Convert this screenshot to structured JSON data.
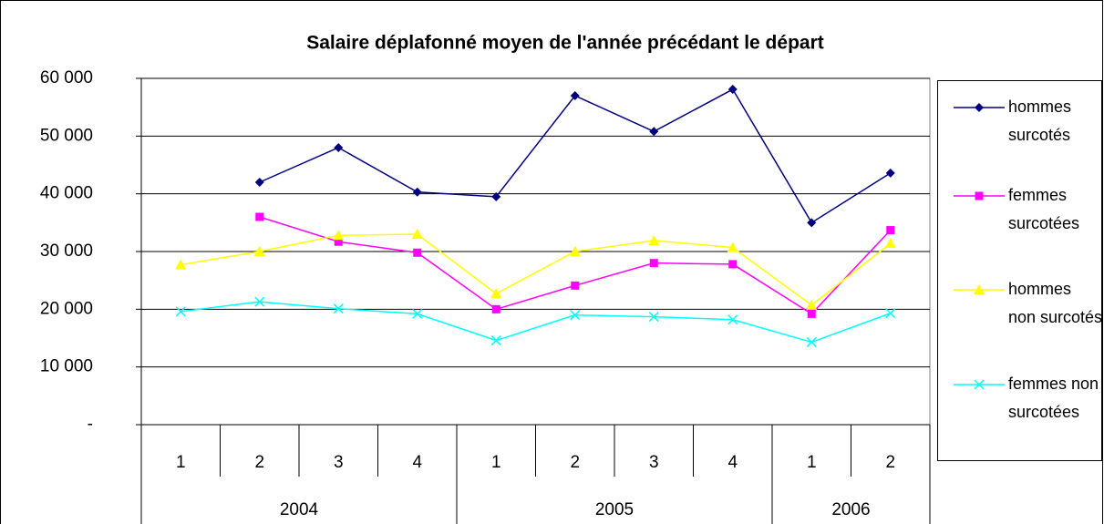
{
  "chart_data": {
    "type": "line",
    "title": "Salaire déplafonné moyen de l'année précédant le départ",
    "categories": [
      "1",
      "2",
      "3",
      "4",
      "1",
      "2",
      "3",
      "4",
      "1",
      "2"
    ],
    "category_groups": [
      "2004",
      "2004",
      "2004",
      "2004",
      "2005",
      "2005",
      "2005",
      "2005",
      "2006",
      "2006"
    ],
    "series": [
      {
        "name": "hommes surcotés",
        "color": "#000080",
        "marker": "diamond",
        "values": [
          null,
          42000,
          48000,
          40300,
          39500,
          57000,
          50800,
          58100,
          35000,
          43600
        ]
      },
      {
        "name": "femmes surcotées",
        "color": "#ff00ff",
        "marker": "square",
        "values": [
          null,
          36000,
          31700,
          29800,
          20000,
          24100,
          28000,
          27800,
          19200,
          33700
        ]
      },
      {
        "name": "hommes non surcotés",
        "color": "#ffff00",
        "marker": "triangle",
        "values": [
          27700,
          30000,
          32800,
          33000,
          22700,
          30000,
          31900,
          30700,
          20700,
          31400
        ]
      },
      {
        "name": "femmes non surcotées",
        "color": "#00ffff",
        "marker": "x",
        "values": [
          19600,
          21300,
          20100,
          19200,
          14600,
          19000,
          18700,
          18200,
          14300,
          19300
        ]
      }
    ],
    "ylim": [
      0,
      60000
    ],
    "yticks": [
      {
        "value": 0,
        "label": "-"
      },
      {
        "value": 10000,
        "label": "10 000"
      },
      {
        "value": 20000,
        "label": "20 000"
      },
      {
        "value": 30000,
        "label": "30 000"
      },
      {
        "value": 40000,
        "label": "40 000"
      },
      {
        "value": 50000,
        "label": "50 000"
      },
      {
        "value": 60000,
        "label": "60 000"
      }
    ],
    "grid": true,
    "legend": "right"
  }
}
